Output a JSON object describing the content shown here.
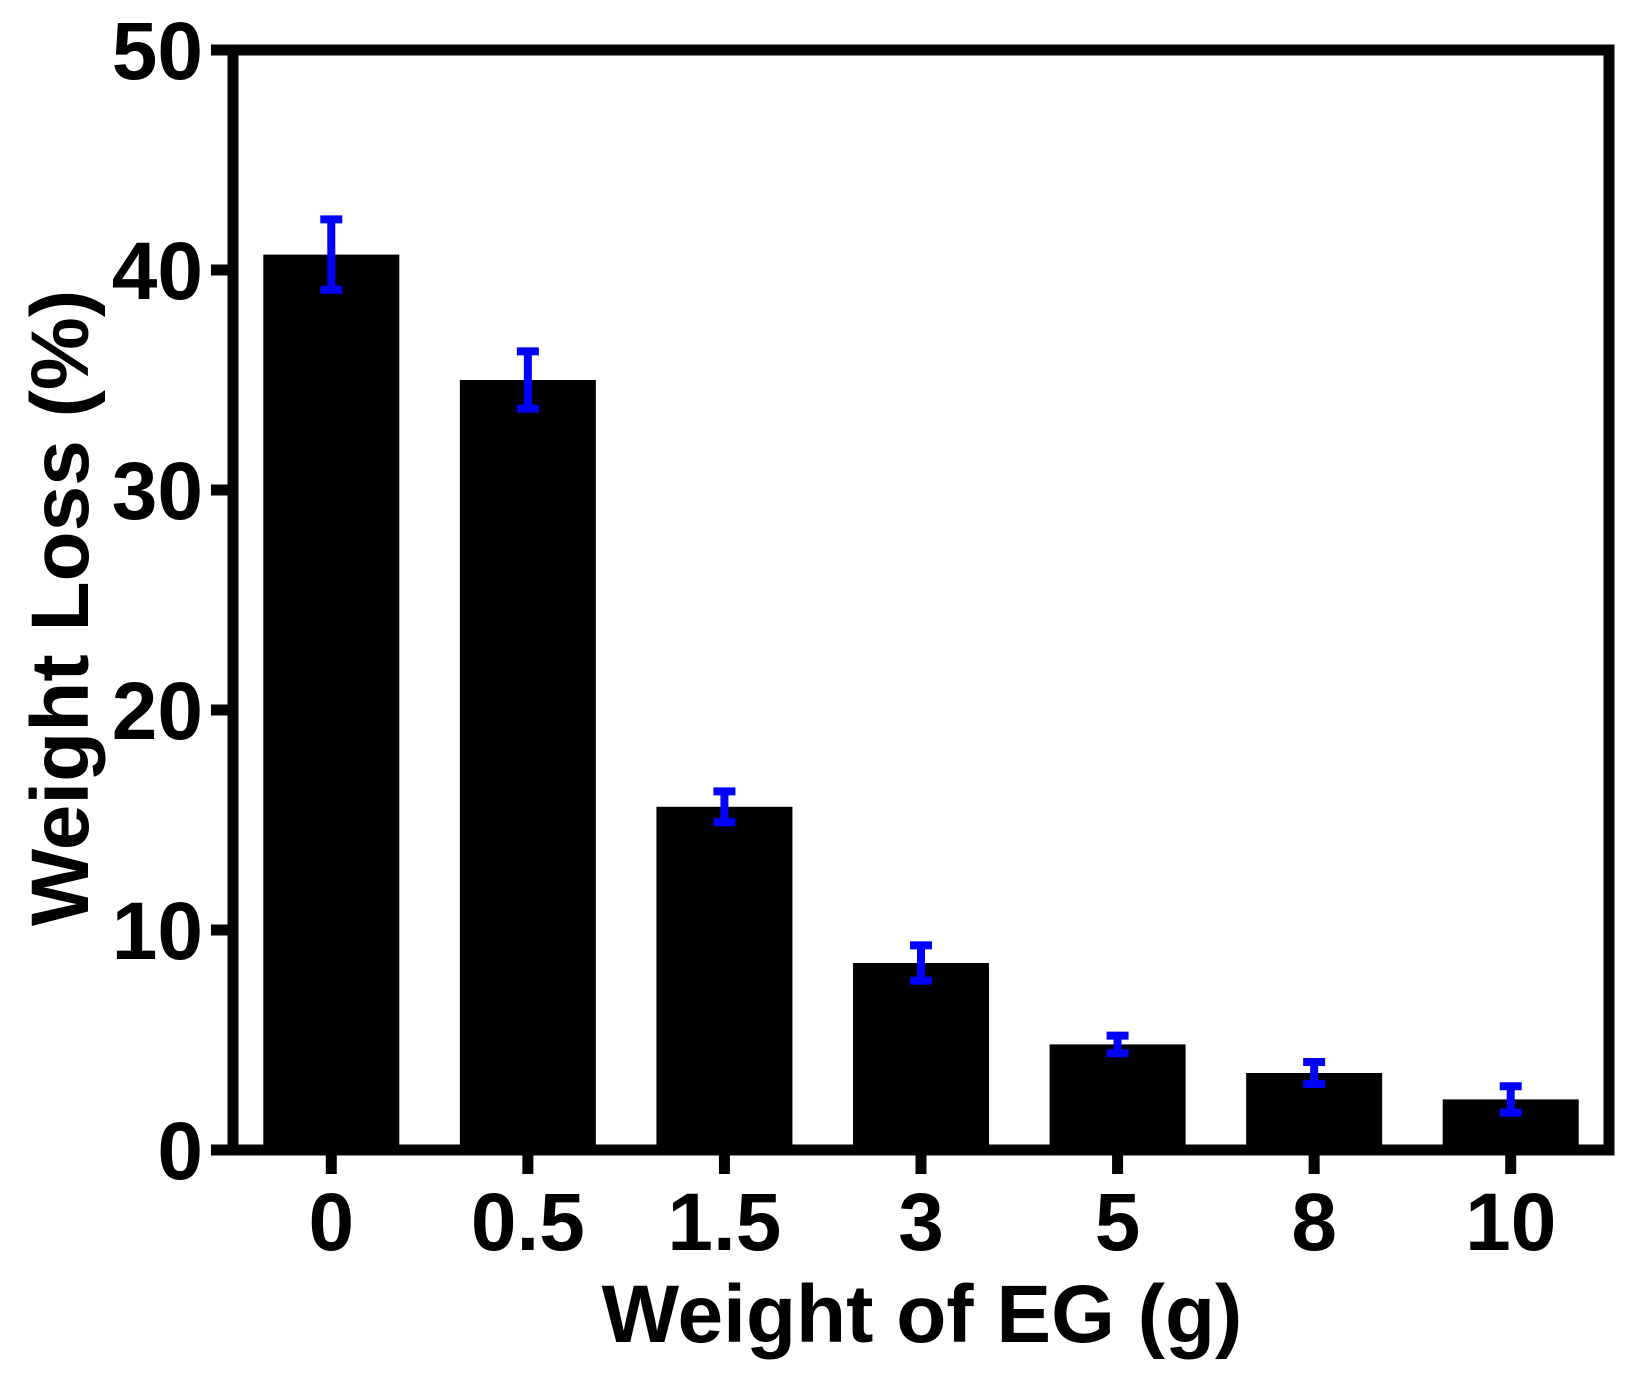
{
  "chart_data": {
    "type": "bar",
    "title": "",
    "xlabel": "Weight of EG (g)",
    "ylabel": "Weight Loss (%)",
    "categories": [
      "0",
      "0.5",
      "1.5",
      "3",
      "5",
      "8",
      "10"
    ],
    "values": [
      40.7,
      35.0,
      15.6,
      8.5,
      4.8,
      3.5,
      2.3
    ],
    "errors": [
      1.6,
      1.3,
      0.7,
      0.8,
      0.4,
      0.5,
      0.6
    ],
    "ylim": [
      0,
      50
    ],
    "yticks": [
      "0",
      "10",
      "20",
      "30",
      "40",
      "50"
    ],
    "grid": false,
    "legend": "none",
    "colors": {
      "bar": "#000000",
      "error_bar": "#0000ff",
      "axis": "#000000"
    }
  }
}
